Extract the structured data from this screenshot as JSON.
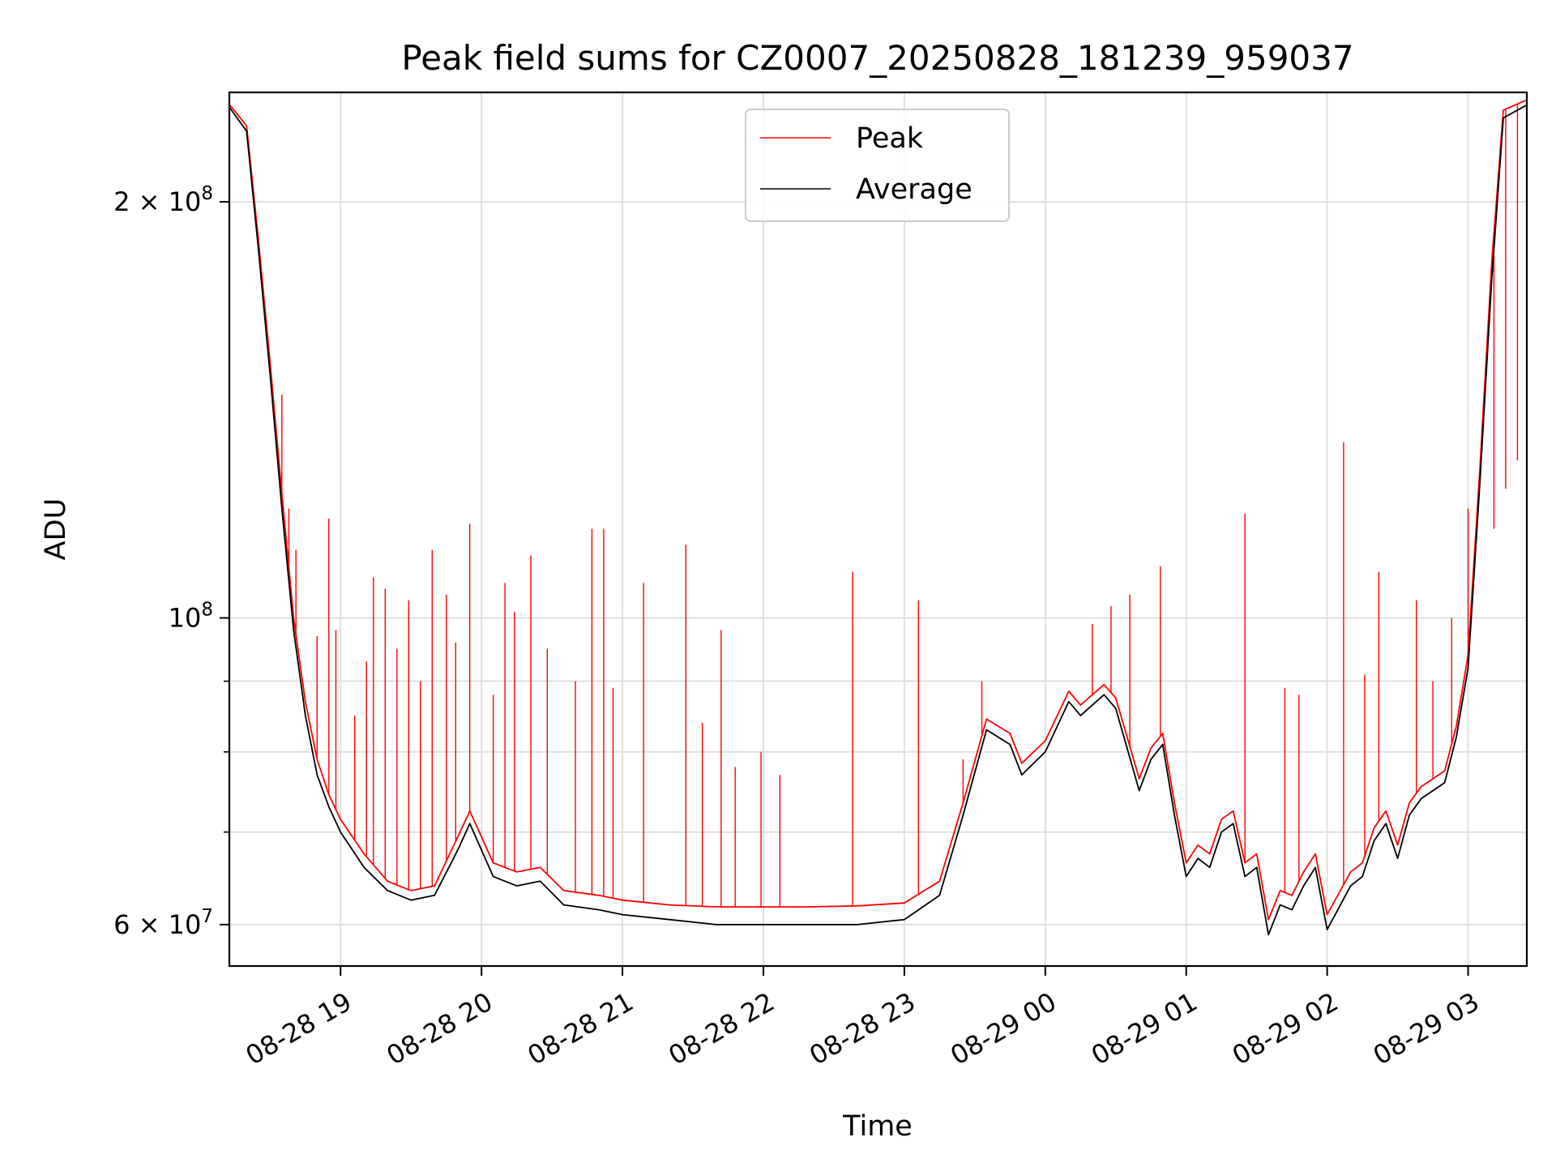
{
  "chart_data": {
    "type": "line",
    "title": "Peak field sums for CZ0007_20250828_181239_959037",
    "xlabel": "Time",
    "ylabel": "ADU",
    "y_scale": "log",
    "ylim": [
      56000000,
      240000000
    ],
    "xlim": [
      "2025-08-28 18:12:39",
      "2025-08-29 03:25:00"
    ],
    "grid": true,
    "legend_position": "top-center",
    "x_ticks": [
      {
        "t": "2025-08-28 19:00",
        "label": "08-28 19"
      },
      {
        "t": "2025-08-28 20:00",
        "label": "08-28 20"
      },
      {
        "t": "2025-08-28 21:00",
        "label": "08-28 21"
      },
      {
        "t": "2025-08-28 22:00",
        "label": "08-28 22"
      },
      {
        "t": "2025-08-28 23:00",
        "label": "08-28 23"
      },
      {
        "t": "2025-08-29 00:00",
        "label": "08-29 00"
      },
      {
        "t": "2025-08-29 01:00",
        "label": "08-29 01"
      },
      {
        "t": "2025-08-29 02:00",
        "label": "08-29 02"
      },
      {
        "t": "2025-08-29 03:00",
        "label": "08-29 03"
      }
    ],
    "y_major_ticks": [
      {
        "value": 60000000,
        "base": "6 × 10",
        "exp": "7"
      },
      {
        "value": 100000000,
        "base": "10",
        "exp": "8"
      },
      {
        "value": 200000000,
        "base": "2 × 10",
        "exp": "8"
      }
    ],
    "y_minor_ticks": [
      70000000,
      80000000,
      90000000
    ],
    "series": [
      {
        "name": "Average",
        "color": "#000000",
        "x": [
          "2025-08-28 18:12",
          "2025-08-28 18:20",
          "2025-08-28 18:25",
          "2025-08-28 18:30",
          "2025-08-28 18:35",
          "2025-08-28 18:40",
          "2025-08-28 18:45",
          "2025-08-28 18:50",
          "2025-08-28 18:55",
          "2025-08-28 19:00",
          "2025-08-28 19:10",
          "2025-08-28 19:20",
          "2025-08-28 19:30",
          "2025-08-28 19:40",
          "2025-08-28 19:50",
          "2025-08-28 19:55",
          "2025-08-28 20:05",
          "2025-08-28 20:15",
          "2025-08-28 20:25",
          "2025-08-28 20:35",
          "2025-08-28 20:50",
          "2025-08-28 21:00",
          "2025-08-28 21:20",
          "2025-08-28 21:40",
          "2025-08-28 22:00",
          "2025-08-28 22:20",
          "2025-08-28 22:40",
          "2025-08-28 23:00",
          "2025-08-28 23:15",
          "2025-08-28 23:25",
          "2025-08-28 23:35",
          "2025-08-28 23:45",
          "2025-08-28 23:50",
          "2025-08-29 00:00",
          "2025-08-29 00:10",
          "2025-08-29 00:15",
          "2025-08-29 00:25",
          "2025-08-29 00:30",
          "2025-08-29 00:40",
          "2025-08-29 00:45",
          "2025-08-29 00:50",
          "2025-08-29 00:55",
          "2025-08-29 01:00",
          "2025-08-29 01:05",
          "2025-08-29 01:10",
          "2025-08-29 01:15",
          "2025-08-29 01:20",
          "2025-08-29 01:25",
          "2025-08-29 01:30",
          "2025-08-29 01:35",
          "2025-08-29 01:40",
          "2025-08-29 01:45",
          "2025-08-29 01:50",
          "2025-08-29 01:55",
          "2025-08-29 02:00",
          "2025-08-29 02:10",
          "2025-08-29 02:15",
          "2025-08-29 02:20",
          "2025-08-29 02:25",
          "2025-08-29 02:30",
          "2025-08-29 02:35",
          "2025-08-29 02:40",
          "2025-08-29 02:45",
          "2025-08-29 02:50",
          "2025-08-29 02:55",
          "2025-08-29 03:00",
          "2025-08-29 03:05",
          "2025-08-29 03:10",
          "2025-08-29 03:15",
          "2025-08-29 03:25"
        ],
        "y": [
          235000000,
          225000000,
          185000000,
          150000000,
          120000000,
          98000000,
          85000000,
          77000000,
          73000000,
          70000000,
          66000000,
          63500000,
          62500000,
          63000000,
          68000000,
          71000000,
          65000000,
          64000000,
          64500000,
          62000000,
          61500000,
          61000000,
          60500000,
          60000000,
          60000000,
          60000000,
          60000000,
          60500000,
          63000000,
          72000000,
          83000000,
          81000000,
          77000000,
          80000000,
          87000000,
          85000000,
          88000000,
          86000000,
          75000000,
          79000000,
          81000000,
          72000000,
          65000000,
          67000000,
          66000000,
          70000000,
          71000000,
          65000000,
          66000000,
          59000000,
          62000000,
          61500000,
          64000000,
          66000000,
          59500000,
          64000000,
          65000000,
          69000000,
          71000000,
          67000000,
          72000000,
          74000000,
          75000000,
          76000000,
          82000000,
          92000000,
          125000000,
          175000000,
          230000000,
          235000000
        ]
      },
      {
        "name": "Peak",
        "color": "#ff0000",
        "x": [
          "2025-08-28 18:12",
          "2025-08-28 18:20",
          "2025-08-28 18:25",
          "2025-08-28 18:30",
          "2025-08-28 18:35",
          "2025-08-28 18:40",
          "2025-08-28 18:45",
          "2025-08-28 18:50",
          "2025-08-28 18:55",
          "2025-08-28 19:00",
          "2025-08-28 19:10",
          "2025-08-28 19:20",
          "2025-08-28 19:30",
          "2025-08-28 19:40",
          "2025-08-28 19:50",
          "2025-08-28 19:55",
          "2025-08-28 20:05",
          "2025-08-28 20:15",
          "2025-08-28 20:25",
          "2025-08-28 20:35",
          "2025-08-28 20:50",
          "2025-08-28 21:00",
          "2025-08-28 21:20",
          "2025-08-28 21:40",
          "2025-08-28 22:00",
          "2025-08-28 22:20",
          "2025-08-28 22:40",
          "2025-08-28 23:00",
          "2025-08-28 23:15",
          "2025-08-28 23:25",
          "2025-08-28 23:35",
          "2025-08-28 23:45",
          "2025-08-28 23:50",
          "2025-08-29 00:00",
          "2025-08-29 00:10",
          "2025-08-29 00:15",
          "2025-08-29 00:25",
          "2025-08-29 00:30",
          "2025-08-29 00:40",
          "2025-08-29 00:45",
          "2025-08-29 00:50",
          "2025-08-29 00:55",
          "2025-08-29 01:00",
          "2025-08-29 01:05",
          "2025-08-29 01:10",
          "2025-08-29 01:15",
          "2025-08-29 01:20",
          "2025-08-29 01:25",
          "2025-08-29 01:30",
          "2025-08-29 01:35",
          "2025-08-29 01:40",
          "2025-08-29 01:45",
          "2025-08-29 01:50",
          "2025-08-29 01:55",
          "2025-08-29 02:00",
          "2025-08-29 02:10",
          "2025-08-29 02:15",
          "2025-08-29 02:20",
          "2025-08-29 02:25",
          "2025-08-29 02:30",
          "2025-08-29 02:35",
          "2025-08-29 02:40",
          "2025-08-29 02:45",
          "2025-08-29 02:50",
          "2025-08-29 02:55",
          "2025-08-29 03:00",
          "2025-08-29 03:05",
          "2025-08-29 03:10",
          "2025-08-29 03:15",
          "2025-08-29 03:25"
        ],
        "y": [
          236000000,
          227000000,
          188000000,
          153000000,
          123000000,
          100000000,
          87000000,
          79000000,
          74500000,
          71500000,
          67500000,
          64500000,
          63500000,
          64000000,
          69500000,
          72500000,
          66500000,
          65500000,
          66000000,
          63500000,
          63000000,
          62500000,
          62000000,
          61800000,
          61800000,
          61800000,
          61900000,
          62200000,
          64500000,
          73500000,
          84500000,
          82500000,
          78500000,
          81500000,
          88500000,
          86500000,
          89500000,
          87500000,
          76500000,
          80500000,
          82500000,
          73500000,
          66500000,
          68500000,
          67500000,
          71500000,
          72500000,
          66500000,
          67500000,
          60500000,
          63500000,
          63000000,
          65500000,
          67500000,
          61000000,
          65500000,
          66500000,
          70500000,
          72500000,
          68500000,
          73500000,
          75500000,
          76500000,
          77500000,
          83500000,
          94000000,
          128000000,
          180000000,
          233000000,
          237000000
        ],
        "spikes": [
          {
            "t": "2025-08-28 18:35",
            "y": 145000000
          },
          {
            "t": "2025-08-28 18:38",
            "y": 120000000
          },
          {
            "t": "2025-08-28 18:41",
            "y": 112000000
          },
          {
            "t": "2025-08-28 18:50",
            "y": 97000000
          },
          {
            "t": "2025-08-28 18:55",
            "y": 118000000
          },
          {
            "t": "2025-08-28 18:58",
            "y": 98000000
          },
          {
            "t": "2025-08-28 19:06",
            "y": 85000000
          },
          {
            "t": "2025-08-28 19:11",
            "y": 93000000
          },
          {
            "t": "2025-08-28 19:14",
            "y": 107000000
          },
          {
            "t": "2025-08-28 19:19",
            "y": 105000000
          },
          {
            "t": "2025-08-28 19:24",
            "y": 95000000
          },
          {
            "t": "2025-08-28 19:29",
            "y": 103000000
          },
          {
            "t": "2025-08-28 19:34",
            "y": 90000000
          },
          {
            "t": "2025-08-28 19:39",
            "y": 112000000
          },
          {
            "t": "2025-08-28 19:45",
            "y": 104000000
          },
          {
            "t": "2025-08-28 19:49",
            "y": 96000000
          },
          {
            "t": "2025-08-28 19:55",
            "y": 117000000
          },
          {
            "t": "2025-08-28 20:05",
            "y": 88000000
          },
          {
            "t": "2025-08-28 20:10",
            "y": 106000000
          },
          {
            "t": "2025-08-28 20:14",
            "y": 101000000
          },
          {
            "t": "2025-08-28 20:21",
            "y": 111000000
          },
          {
            "t": "2025-08-28 20:28",
            "y": 95000000
          },
          {
            "t": "2025-08-28 20:40",
            "y": 90000000
          },
          {
            "t": "2025-08-28 20:47",
            "y": 116000000
          },
          {
            "t": "2025-08-28 20:52",
            "y": 116000000
          },
          {
            "t": "2025-08-28 20:56",
            "y": 89000000
          },
          {
            "t": "2025-08-28 21:09",
            "y": 106000000
          },
          {
            "t": "2025-08-28 21:27",
            "y": 113000000
          },
          {
            "t": "2025-08-28 21:34",
            "y": 84000000
          },
          {
            "t": "2025-08-28 21:42",
            "y": 98000000
          },
          {
            "t": "2025-08-28 21:48",
            "y": 78000000
          },
          {
            "t": "2025-08-28 21:59",
            "y": 80000000
          },
          {
            "t": "2025-08-28 22:07",
            "y": 77000000
          },
          {
            "t": "2025-08-28 22:38",
            "y": 108000000
          },
          {
            "t": "2025-08-28 23:06",
            "y": 103000000
          },
          {
            "t": "2025-08-28 23:25",
            "y": 79000000
          },
          {
            "t": "2025-08-28 23:33",
            "y": 90000000
          },
          {
            "t": "2025-08-29 00:20",
            "y": 99000000
          },
          {
            "t": "2025-08-29 00:28",
            "y": 102000000
          },
          {
            "t": "2025-08-29 00:36",
            "y": 104000000
          },
          {
            "t": "2025-08-29 00:49",
            "y": 109000000
          },
          {
            "t": "2025-08-29 01:25",
            "y": 119000000
          },
          {
            "t": "2025-08-29 01:42",
            "y": 89000000
          },
          {
            "t": "2025-08-29 01:48",
            "y": 88000000
          },
          {
            "t": "2025-08-29 02:07",
            "y": 134000000
          },
          {
            "t": "2025-08-29 02:16",
            "y": 91000000
          },
          {
            "t": "2025-08-29 02:22",
            "y": 108000000
          },
          {
            "t": "2025-08-29 02:38",
            "y": 103000000
          },
          {
            "t": "2025-08-29 02:45",
            "y": 90000000
          },
          {
            "t": "2025-08-29 02:53",
            "y": 100000000
          },
          {
            "t": "2025-08-29 03:00",
            "y": 120000000
          },
          {
            "t": "2025-08-29 03:11",
            "y": 116000000
          },
          {
            "t": "2025-08-29 03:16",
            "y": 124000000
          },
          {
            "t": "2025-08-29 03:21",
            "y": 130000000
          }
        ]
      }
    ],
    "legend": [
      {
        "label": "Peak",
        "color": "#ff0000"
      },
      {
        "label": "Average",
        "color": "#000000"
      }
    ]
  }
}
